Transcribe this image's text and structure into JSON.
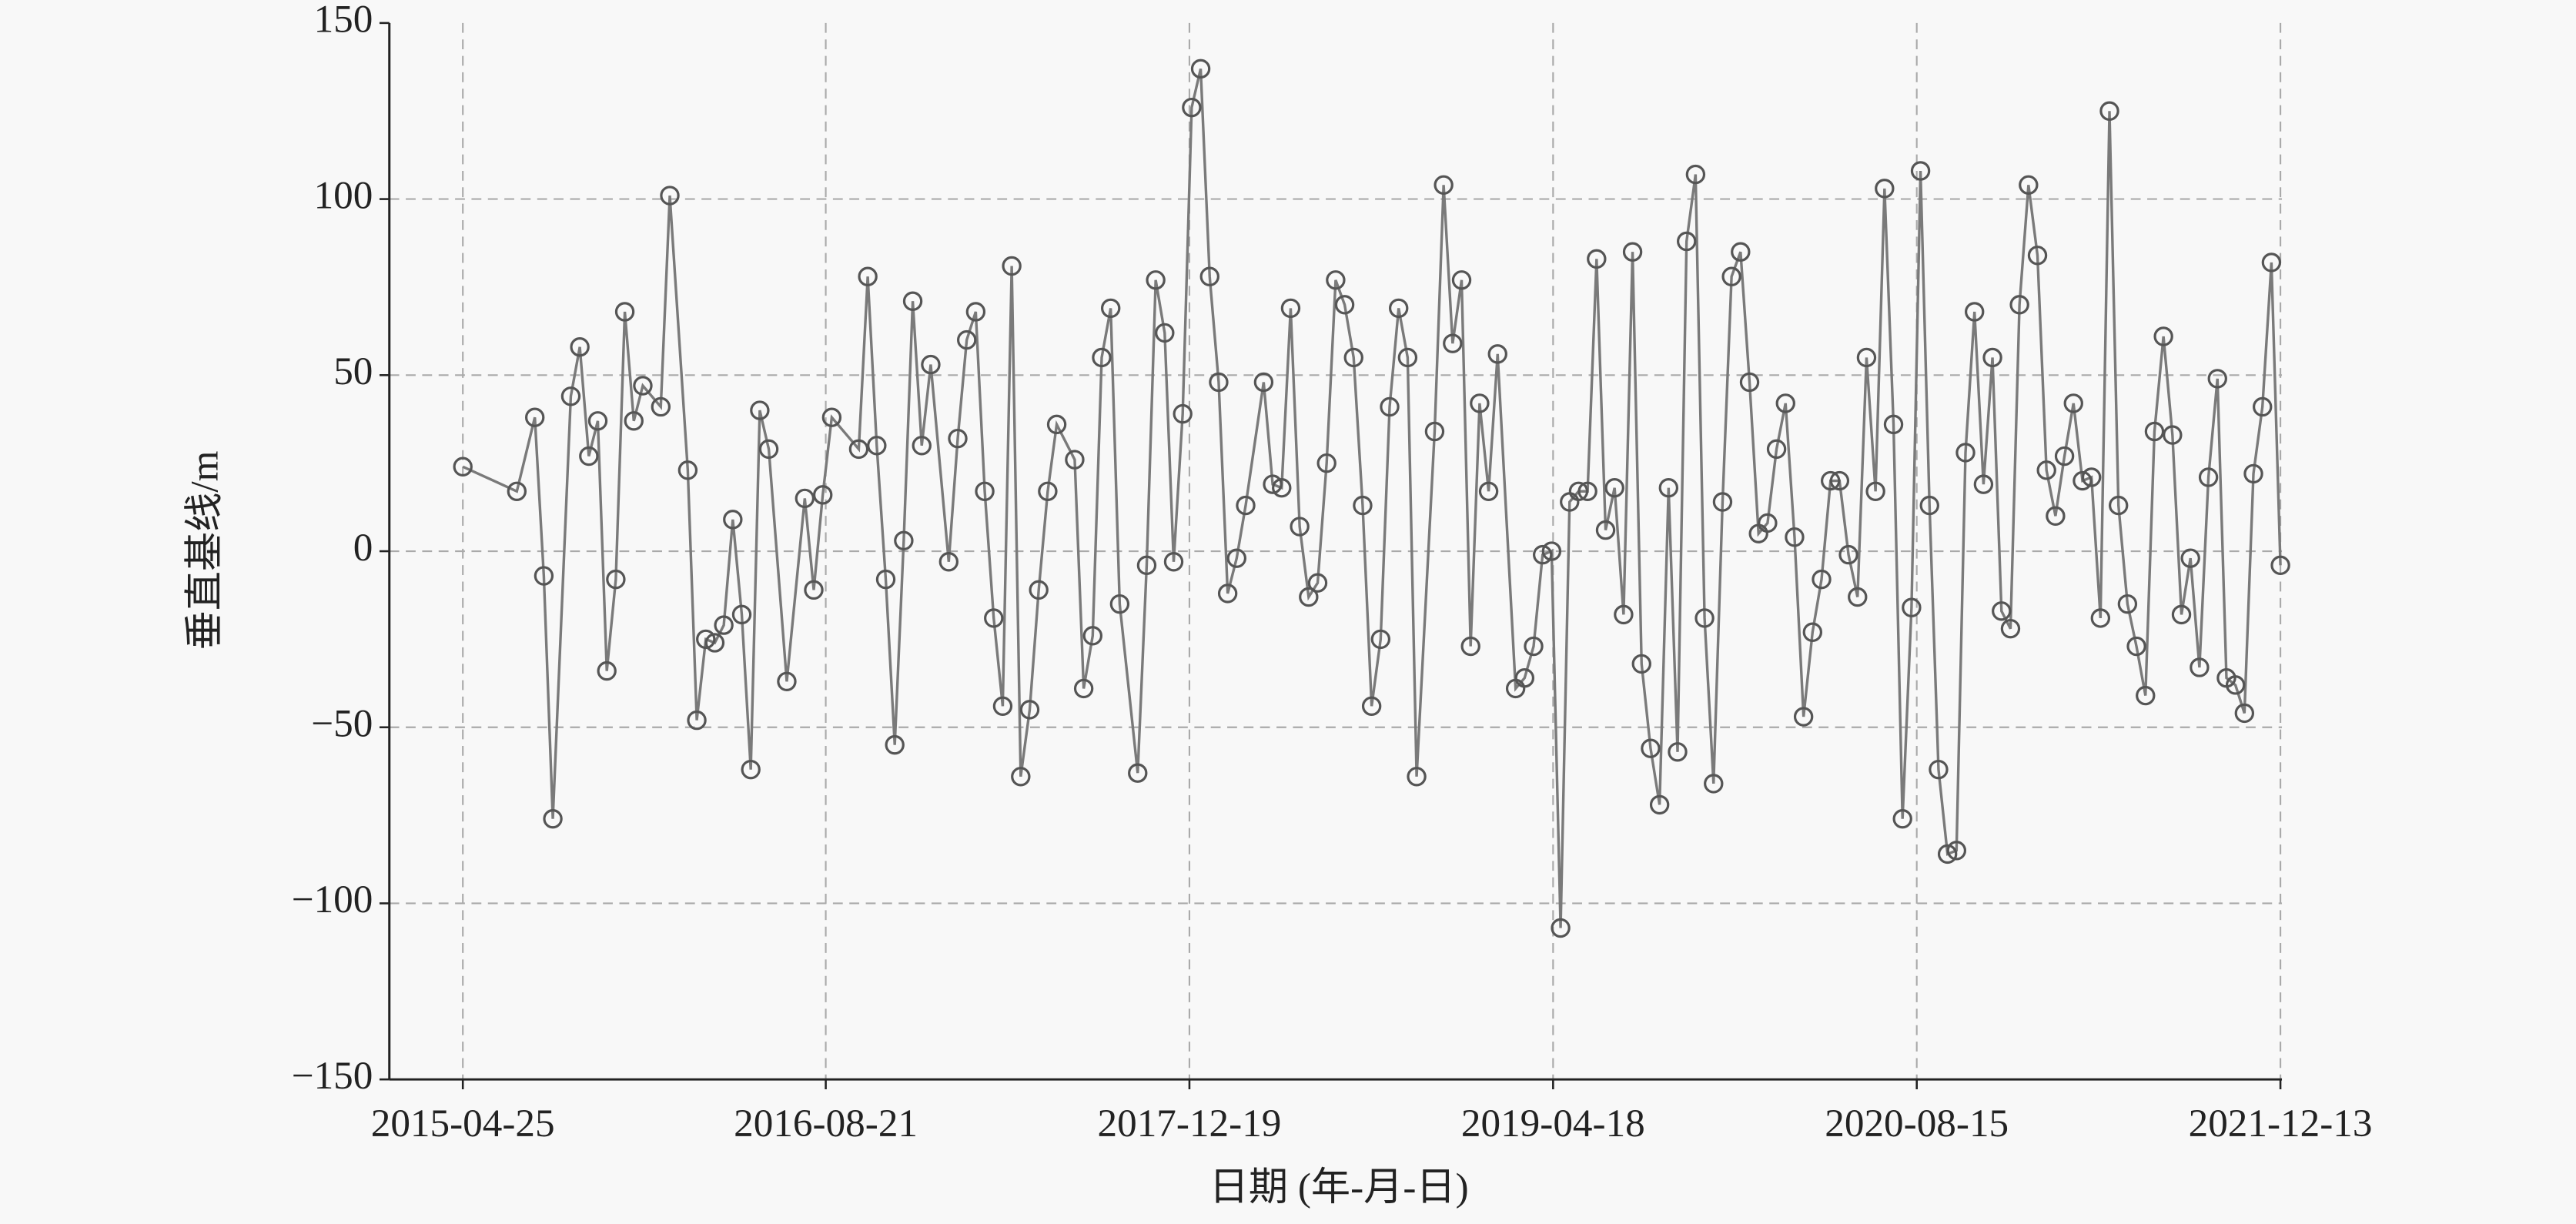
{
  "chart_data": {
    "type": "line",
    "xlabel": "日期 (年-月-日)",
    "ylabel": "垂直基线/m",
    "x": [
      "2015-04-25",
      "2015-07-06",
      "2015-07-30",
      "2015-08-11",
      "2015-08-23",
      "2015-09-16",
      "2015-09-28",
      "2015-10-10",
      "2015-10-22",
      "2015-11-03",
      "2015-11-15",
      "2015-11-27",
      "2015-12-09",
      "2015-12-21",
      "2016-01-14",
      "2016-01-26",
      "2016-02-19",
      "2016-03-02",
      "2016-03-14",
      "2016-03-26",
      "2016-04-07",
      "2016-04-19",
      "2016-05-01",
      "2016-05-13",
      "2016-05-25",
      "2016-06-06",
      "2016-06-30",
      "2016-07-24",
      "2016-08-05",
      "2016-08-17",
      "2016-08-29",
      "2016-10-04",
      "2016-10-16",
      "2016-10-28",
      "2016-11-09",
      "2016-11-21",
      "2016-12-03",
      "2016-12-15",
      "2016-12-27",
      "2017-01-08",
      "2017-02-01",
      "2017-02-13",
      "2017-02-25",
      "2017-03-09",
      "2017-03-21",
      "2017-04-02",
      "2017-04-14",
      "2017-04-26",
      "2017-05-08",
      "2017-05-20",
      "2017-06-01",
      "2017-06-13",
      "2017-06-25",
      "2017-07-19",
      "2017-07-31",
      "2017-08-12",
      "2017-08-24",
      "2017-09-05",
      "2017-09-17",
      "2017-10-11",
      "2017-10-23",
      "2017-11-04",
      "2017-11-16",
      "2017-11-28",
      "2017-12-10",
      "2017-12-22",
      "2018-01-03",
      "2018-01-15",
      "2018-01-27",
      "2018-02-08",
      "2018-02-20",
      "2018-03-04",
      "2018-03-28",
      "2018-04-09",
      "2018-04-21",
      "2018-05-03",
      "2018-05-15",
      "2018-05-27",
      "2018-06-08",
      "2018-06-20",
      "2018-07-02",
      "2018-07-14",
      "2018-07-26",
      "2018-08-07",
      "2018-08-19",
      "2018-08-31",
      "2018-09-12",
      "2018-09-24",
      "2018-10-06",
      "2018-10-18",
      "2018-11-11",
      "2018-11-23",
      "2018-12-05",
      "2018-12-17",
      "2018-12-29",
      "2019-01-10",
      "2019-01-22",
      "2019-02-03",
      "2019-02-27",
      "2019-03-11",
      "2019-03-23",
      "2019-04-04",
      "2019-04-16",
      "2019-04-28",
      "2019-05-10",
      "2019-05-22",
      "2019-06-03",
      "2019-06-15",
      "2019-06-27",
      "2019-07-09",
      "2019-07-21",
      "2019-08-02",
      "2019-08-14",
      "2019-08-26",
      "2019-09-07",
      "2019-09-19",
      "2019-10-01",
      "2019-10-13",
      "2019-10-25",
      "2019-11-06",
      "2019-11-18",
      "2019-11-30",
      "2019-12-12",
      "2019-12-24",
      "2020-01-05",
      "2020-01-17",
      "2020-01-29",
      "2020-02-10",
      "2020-02-22",
      "2020-03-05",
      "2020-03-17",
      "2020-03-29",
      "2020-04-10",
      "2020-04-22",
      "2020-05-04",
      "2020-05-16",
      "2020-05-28",
      "2020-06-09",
      "2020-06-21",
      "2020-07-03",
      "2020-07-15",
      "2020-07-27",
      "2020-08-08",
      "2020-08-20",
      "2020-09-01",
      "2020-09-13",
      "2020-09-25",
      "2020-10-07",
      "2020-10-19",
      "2020-10-31",
      "2020-11-12",
      "2020-11-24",
      "2020-12-06",
      "2020-12-18",
      "2020-12-30",
      "2021-01-11",
      "2021-01-23",
      "2021-02-04",
      "2021-02-16",
      "2021-02-28",
      "2021-03-12",
      "2021-03-24",
      "2021-04-05",
      "2021-04-17",
      "2021-04-29",
      "2021-05-11",
      "2021-05-23",
      "2021-06-04",
      "2021-06-16",
      "2021-06-28",
      "2021-07-10",
      "2021-07-22",
      "2021-08-03",
      "2021-08-15",
      "2021-08-27",
      "2021-09-08",
      "2021-09-20",
      "2021-10-02",
      "2021-10-14",
      "2021-10-26",
      "2021-11-07",
      "2021-11-19",
      "2021-12-01",
      "2021-12-13"
    ],
    "values": [
      24,
      17,
      38,
      -7,
      -76,
      44,
      58,
      27,
      37,
      -34,
      -8,
      68,
      37,
      47,
      41,
      101,
      23,
      -48,
      -25,
      -26,
      -21,
      9,
      -18,
      -62,
      40,
      29,
      -37,
      15,
      -11,
      16,
      38,
      29,
      78,
      30,
      -8,
      -55,
      3,
      71,
      30,
      53,
      -3,
      32,
      60,
      68,
      17,
      -19,
      -44,
      81,
      -64,
      -45,
      -11,
      17,
      36,
      26,
      -39,
      -24,
      55,
      69,
      -15,
      -63,
      -4,
      77,
      62,
      -3,
      39,
      126,
      137,
      78,
      48,
      -12,
      -2,
      13,
      48,
      19,
      18,
      69,
      7,
      -13,
      -9,
      25,
      77,
      70,
      55,
      13,
      -44,
      -25,
      41,
      69,
      55,
      -64,
      34,
      104,
      59,
      77,
      -27,
      42,
      17,
      56,
      -39,
      -36,
      -27,
      -1,
      0,
      -107,
      14,
      17,
      17,
      83,
      6,
      18,
      -18,
      85,
      -32,
      -56,
      -72,
      18,
      -57,
      88,
      107,
      -19,
      -66,
      14,
      78,
      85,
      48,
      5,
      8,
      29,
      42,
      4,
      -47,
      -23,
      -8,
      20,
      20,
      -1,
      -13,
      55,
      17,
      103,
      36,
      -76,
      -16,
      108,
      13,
      -62,
      -86,
      -85,
      28,
      68,
      19,
      55,
      -17,
      -22,
      70,
      104,
      84,
      23,
      10,
      27,
      42,
      20,
      21,
      -19,
      125,
      13,
      -15,
      -27,
      -41,
      34,
      61,
      33,
      -18,
      -2,
      -33,
      21,
      49,
      -36,
      -38,
      -46,
      22,
      41,
      82,
      -4
    ],
    "color": "#7a7a7a",
    "marker_color": "#555555",
    "xlim": [
      "2015-01-17",
      "2021-12-15"
    ],
    "xticks": [
      "2015-04-25",
      "2016-08-21",
      "2017-12-19",
      "2019-04-18",
      "2020-08-15",
      "2021-12-13"
    ],
    "ylim": [
      -150,
      150
    ],
    "yticks": [
      {
        "value": -150,
        "label": "−150"
      },
      {
        "value": -100,
        "label": "−100"
      },
      {
        "value": -50,
        "label": "−50"
      },
      0,
      50,
      100,
      150
    ],
    "grid": true
  }
}
